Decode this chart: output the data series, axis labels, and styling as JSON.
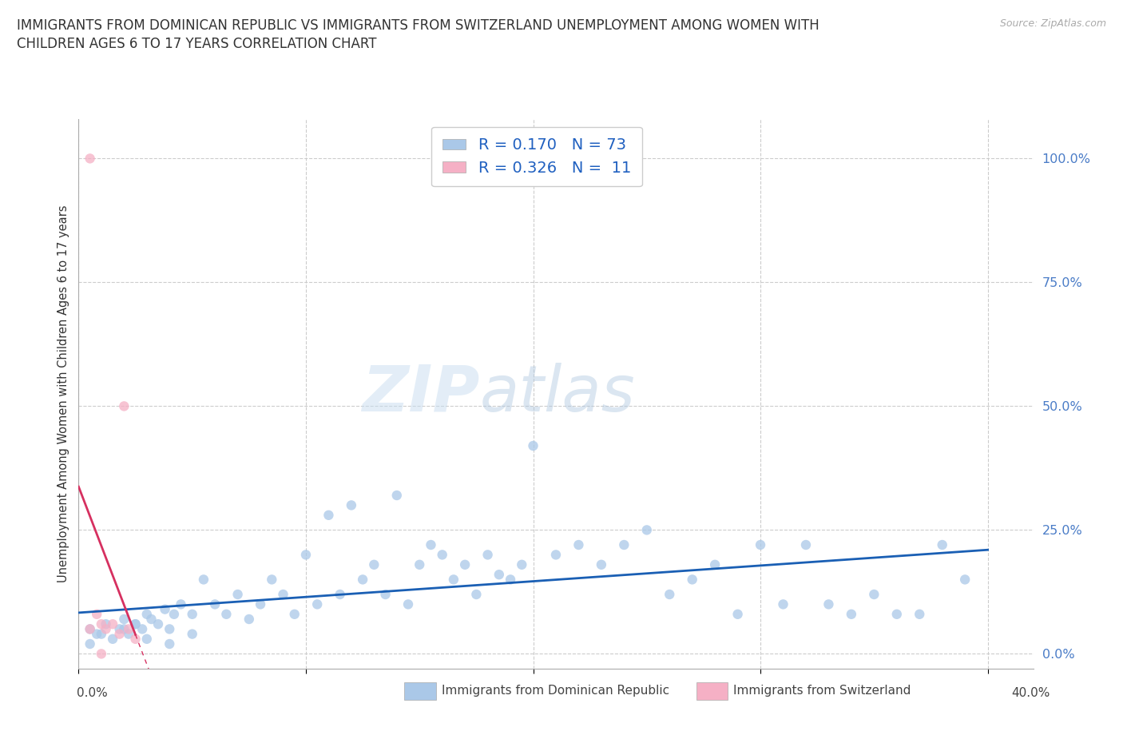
{
  "title_line1": "IMMIGRANTS FROM DOMINICAN REPUBLIC VS IMMIGRANTS FROM SWITZERLAND UNEMPLOYMENT AMONG WOMEN WITH",
  "title_line2": "CHILDREN AGES 6 TO 17 YEARS CORRELATION CHART",
  "source": "Source: ZipAtlas.com",
  "ylabel": "Unemployment Among Women with Children Ages 6 to 17 years",
  "r_blue": 0.17,
  "n_blue": 73,
  "r_pink": 0.326,
  "n_pink": 11,
  "blue_color": "#aac8e8",
  "pink_color": "#f5b0c5",
  "trendline_blue": "#1a5fb4",
  "trendline_pink": "#d63060",
  "background": "#ffffff",
  "grid_color": "#cccccc",
  "xlim": [
    0.0,
    0.42
  ],
  "ylim": [
    -0.03,
    1.08
  ],
  "xtick_vals": [
    0.0,
    0.1,
    0.2,
    0.3,
    0.4
  ],
  "ytick_positions": [
    0.0,
    0.25,
    0.5,
    0.75,
    1.0
  ],
  "ytick_labels": [
    "0.0%",
    "25.0%",
    "50.0%",
    "75.0%",
    "100.0%"
  ],
  "label_blue": "Immigrants from Dominican Republic",
  "label_pink": "Immigrants from Switzerland",
  "blue_x": [
    0.005,
    0.008,
    0.012,
    0.015,
    0.018,
    0.02,
    0.022,
    0.025,
    0.028,
    0.03,
    0.032,
    0.035,
    0.038,
    0.04,
    0.042,
    0.045,
    0.05,
    0.055,
    0.06,
    0.065,
    0.07,
    0.075,
    0.08,
    0.085,
    0.09,
    0.095,
    0.1,
    0.105,
    0.11,
    0.115,
    0.12,
    0.125,
    0.13,
    0.135,
    0.14,
    0.145,
    0.15,
    0.155,
    0.16,
    0.165,
    0.17,
    0.175,
    0.18,
    0.185,
    0.19,
    0.195,
    0.2,
    0.21,
    0.22,
    0.23,
    0.24,
    0.25,
    0.26,
    0.27,
    0.28,
    0.29,
    0.3,
    0.31,
    0.32,
    0.33,
    0.34,
    0.35,
    0.36,
    0.37,
    0.38,
    0.39,
    0.005,
    0.01,
    0.02,
    0.025,
    0.03,
    0.04,
    0.05
  ],
  "blue_y": [
    0.05,
    0.04,
    0.06,
    0.03,
    0.05,
    0.07,
    0.04,
    0.06,
    0.05,
    0.08,
    0.07,
    0.06,
    0.09,
    0.05,
    0.08,
    0.1,
    0.08,
    0.15,
    0.1,
    0.08,
    0.12,
    0.07,
    0.1,
    0.15,
    0.12,
    0.08,
    0.2,
    0.1,
    0.28,
    0.12,
    0.3,
    0.15,
    0.18,
    0.12,
    0.32,
    0.1,
    0.18,
    0.22,
    0.2,
    0.15,
    0.18,
    0.12,
    0.2,
    0.16,
    0.15,
    0.18,
    0.42,
    0.2,
    0.22,
    0.18,
    0.22,
    0.25,
    0.12,
    0.15,
    0.18,
    0.08,
    0.22,
    0.1,
    0.22,
    0.1,
    0.08,
    0.12,
    0.08,
    0.08,
    0.22,
    0.15,
    0.02,
    0.04,
    0.05,
    0.06,
    0.03,
    0.02,
    0.04
  ],
  "pink_x": [
    0.005,
    0.008,
    0.01,
    0.012,
    0.015,
    0.018,
    0.02,
    0.022,
    0.025,
    0.005,
    0.01
  ],
  "pink_y": [
    1.0,
    0.08,
    0.06,
    0.05,
    0.06,
    0.04,
    0.5,
    0.05,
    0.03,
    0.05,
    0.0
  ],
  "marker_size": 80,
  "watermark_zip": "ZIP",
  "watermark_atlas": "atlas",
  "legend_r_color": "#2060c0",
  "title_fontsize": 12.0
}
